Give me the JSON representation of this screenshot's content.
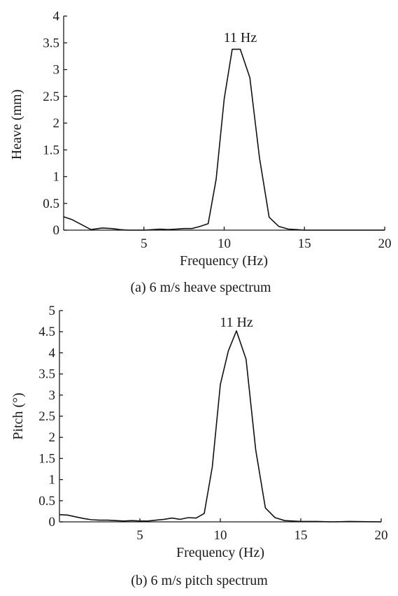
{
  "chart_data": [
    {
      "type": "line",
      "caption": "(a) 6 m/s heave spectrum",
      "xlabel": "Frequency (Hz)",
      "ylabel": "Heave (mm)",
      "xlim": [
        0,
        20
      ],
      "ylim": [
        0,
        4
      ],
      "xticks": [
        5,
        10,
        15,
        20
      ],
      "yticks": [
        0,
        0.5,
        1,
        1.5,
        2,
        2.5,
        3,
        3.5,
        4
      ],
      "annotation": {
        "text": "11 Hz",
        "x": 11
      },
      "grid": false,
      "x": [
        0,
        0.5,
        1.7,
        2.4,
        3.0,
        3.5,
        4.0,
        5.0,
        6.0,
        6.5,
        7.0,
        7.5,
        8.0,
        8.5,
        9.0,
        9.5,
        10.0,
        10.5,
        11.0,
        11.6,
        12.2,
        12.8,
        13.4,
        14.0,
        14.5,
        15.0,
        16.0,
        20.0
      ],
      "y": [
        0.25,
        0.2,
        0.01,
        0.04,
        0.03,
        0.01,
        0.0,
        0.0,
        0.02,
        0.01,
        0.02,
        0.03,
        0.03,
        0.07,
        0.12,
        0.95,
        2.45,
        3.38,
        3.38,
        2.85,
        1.35,
        0.24,
        0.07,
        0.02,
        0.01,
        0.0,
        0.0,
        0.0
      ]
    },
    {
      "type": "line",
      "caption": "(b) 6 m/s pitch spectrum",
      "xlabel": "Frequency (Hz)",
      "ylabel": "Pitch (°)",
      "xlim": [
        0,
        20
      ],
      "ylim": [
        0,
        5
      ],
      "xticks": [
        5,
        10,
        15,
        20
      ],
      "yticks": [
        0,
        0.5,
        1,
        1.5,
        2,
        2.5,
        3,
        3.5,
        4,
        4.5,
        5
      ],
      "annotation": {
        "text": "11 Hz",
        "x": 11
      },
      "grid": false,
      "x": [
        0,
        0.5,
        1.0,
        1.5,
        2.0,
        2.5,
        3.0,
        3.5,
        4.0,
        4.5,
        5.0,
        5.5,
        6.0,
        6.5,
        7.0,
        7.5,
        8.0,
        8.5,
        9.0,
        9.5,
        10.0,
        10.5,
        11.0,
        11.6,
        12.2,
        12.8,
        13.4,
        14.0,
        14.5,
        15.0,
        16.0,
        17.0,
        18.0,
        20.0
      ],
      "y": [
        0.17,
        0.16,
        0.12,
        0.08,
        0.05,
        0.04,
        0.04,
        0.03,
        0.02,
        0.03,
        0.02,
        0.02,
        0.04,
        0.06,
        0.09,
        0.06,
        0.1,
        0.09,
        0.2,
        1.3,
        3.25,
        4.05,
        4.52,
        3.85,
        1.7,
        0.33,
        0.1,
        0.03,
        0.02,
        0.01,
        0.01,
        0.0,
        0.01,
        0.0
      ]
    }
  ]
}
